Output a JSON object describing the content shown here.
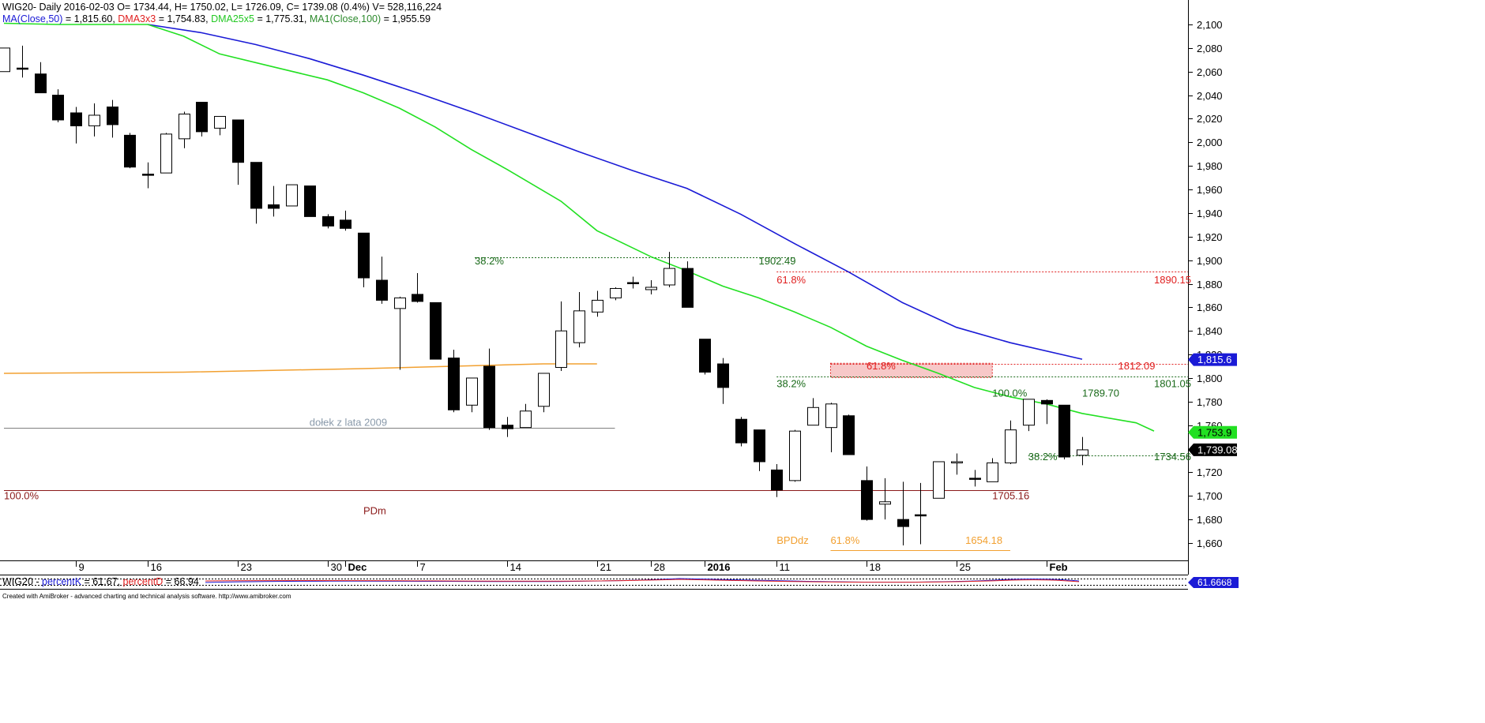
{
  "header": {
    "line1": "WIG20- Daily 2016-02-03 O= 1734.44, H= 1750.02, L= 1726.09, C= 1739.08 (0.4%) V= 528,116,224",
    "ma50_text": "MA(Close,50)",
    "ma50_val": " = 1,815.60, ",
    "dma3_text": "DMA3x3",
    "dma3_val": " = 1,754.83, ",
    "dma25_text": "DMA25x5",
    "dma25_val": " = 1,775.31, ",
    "ma100_text": "MA1(Close,100)",
    "ma100_val": " = 1,955.59"
  },
  "indicator": {
    "prefix": "WIG20 - ",
    "k_label": "percentK",
    "k_val": " = 61.67, ",
    "d_label": "percentD",
    "d_val": " = 66.94",
    "last_label": "61.6668"
  },
  "footer": "Created with AmiBroker - advanced charting and technical analysis software. http://www.amibroker.com",
  "colors": {
    "ma50": "#1a1ad6",
    "dma25": "#22e022",
    "dma3": "#e02020",
    "ma100": "#2c8a2c",
    "orange": "#f2a030",
    "fib_red": "#e02020",
    "fib_green": "#1a6a1a",
    "pdm": "#8b1a1a",
    "pink_zone": "#f7c8c8",
    "support": "#808080"
  },
  "chart_data": {
    "type": "candlestick",
    "title": "WIG20- Daily",
    "ylim": [
      1645,
      2110
    ],
    "y_ticks": [
      1660,
      1680,
      1700,
      1720,
      1740,
      1760,
      1780,
      1800,
      1820,
      1840,
      1860,
      1880,
      1900,
      1920,
      1940,
      1960,
      1980,
      2000,
      2020,
      2040,
      2060,
      2080,
      2100
    ],
    "y_tick_labels": [
      "1,660",
      "1,680",
      "1,700",
      "1,720",
      "1,740",
      "1,760",
      "1,780",
      "1,800",
      "1,820",
      "1,840",
      "1,860",
      "1,880",
      "1,900",
      "1,920",
      "1,940",
      "1,960",
      "1,980",
      "2,000",
      "2,020",
      "2,040",
      "2,060",
      "2,080",
      "2,100"
    ],
    "x_tick_labels": [
      {
        "label": "9",
        "index": 4
      },
      {
        "label": "16",
        "index": 8
      },
      {
        "label": "23",
        "index": 13
      },
      {
        "label": "30",
        "index": 18
      },
      {
        "label": "Dec",
        "index": 19
      },
      {
        "label": "7",
        "index": 23
      },
      {
        "label": "14",
        "index": 28
      },
      {
        "label": "21",
        "index": 33
      },
      {
        "label": "28",
        "index": 36
      },
      {
        "label": "2016",
        "index": 39
      },
      {
        "label": "11",
        "index": 43
      },
      {
        "label": "18",
        "index": 48
      },
      {
        "label": "25",
        "index": 53
      },
      {
        "label": "Feb",
        "index": 58
      }
    ],
    "candles": [
      {
        "o": 2060,
        "h": 2080,
        "l": 2060,
        "c": 2080
      },
      {
        "o": 2063,
        "h": 2082,
        "l": 2055,
        "c": 2063
      },
      {
        "o": 2058,
        "h": 2068,
        "l": 2042,
        "c": 2042
      },
      {
        "o": 2040,
        "h": 2045,
        "l": 2017,
        "c": 2019
      },
      {
        "o": 2025,
        "h": 2030,
        "l": 1999,
        "c": 2014
      },
      {
        "o": 2014,
        "h": 2033,
        "l": 2005,
        "c": 2023
      },
      {
        "o": 2030,
        "h": 2036,
        "l": 2004,
        "c": 2015
      },
      {
        "o": 2006,
        "h": 2008,
        "l": 1978,
        "c": 1979
      },
      {
        "o": 1973,
        "h": 1983,
        "l": 1961,
        "c": 1973
      },
      {
        "o": 1974,
        "h": 2008,
        "l": 1974,
        "c": 2007
      },
      {
        "o": 2003,
        "h": 2026,
        "l": 1995,
        "c": 2024
      },
      {
        "o": 2034,
        "h": 2034,
        "l": 2005,
        "c": 2009
      },
      {
        "o": 2012,
        "h": 2022,
        "l": 2006,
        "c": 2022
      },
      {
        "o": 2019,
        "h": 2019,
        "l": 1964,
        "c": 1983
      },
      {
        "o": 1983,
        "h": 1983,
        "l": 1931,
        "c": 1944
      },
      {
        "o": 1947,
        "h": 1963,
        "l": 1937,
        "c": 1944
      },
      {
        "o": 1946,
        "h": 1964,
        "l": 1946,
        "c": 1964
      },
      {
        "o": 1963,
        "h": 1963,
        "l": 1937,
        "c": 1937
      },
      {
        "o": 1937,
        "h": 1939,
        "l": 1927,
        "c": 1929
      },
      {
        "o": 1934,
        "h": 1942,
        "l": 1925,
        "c": 1927
      },
      {
        "o": 1923,
        "h": 1923,
        "l": 1877,
        "c": 1885
      },
      {
        "o": 1883,
        "h": 1903,
        "l": 1863,
        "c": 1866
      },
      {
        "o": 1859,
        "h": 1869,
        "l": 1807,
        "c": 1868
      },
      {
        "o": 1871,
        "h": 1889,
        "l": 1864,
        "c": 1865
      },
      {
        "o": 1864,
        "h": 1864,
        "l": 1816,
        "c": 1816
      },
      {
        "o": 1817,
        "h": 1824,
        "l": 1771,
        "c": 1773
      },
      {
        "o": 1777,
        "h": 1799,
        "l": 1771,
        "c": 1800
      },
      {
        "o": 1810,
        "h": 1825,
        "l": 1756,
        "c": 1758
      },
      {
        "o": 1760,
        "h": 1767,
        "l": 1750,
        "c": 1757
      },
      {
        "o": 1758,
        "h": 1778,
        "l": 1758,
        "c": 1772
      },
      {
        "o": 1776,
        "h": 1803,
        "l": 1771,
        "c": 1804
      },
      {
        "o": 1809,
        "h": 1865,
        "l": 1806,
        "c": 1840
      },
      {
        "o": 1830,
        "h": 1873,
        "l": 1826,
        "c": 1857
      },
      {
        "o": 1856,
        "h": 1874,
        "l": 1852,
        "c": 1866
      },
      {
        "o": 1868,
        "h": 1877,
        "l": 1866,
        "c": 1876
      },
      {
        "o": 1881,
        "h": 1886,
        "l": 1876,
        "c": 1881
      },
      {
        "o": 1875,
        "h": 1883,
        "l": 1871,
        "c": 1877
      },
      {
        "o": 1879,
        "h": 1907,
        "l": 1877,
        "c": 1893
      },
      {
        "o": 1893,
        "h": 1899,
        "l": 1860,
        "c": 1860
      },
      {
        "o": 1833,
        "h": 1833,
        "l": 1803,
        "c": 1805
      },
      {
        "o": 1812,
        "h": 1817,
        "l": 1778,
        "c": 1792
      },
      {
        "o": 1765,
        "h": 1767,
        "l": 1742,
        "c": 1745
      },
      {
        "o": 1756,
        "h": 1756,
        "l": 1721,
        "c": 1729
      },
      {
        "o": 1722,
        "h": 1727,
        "l": 1699,
        "c": 1705
      },
      {
        "o": 1713,
        "h": 1756,
        "l": 1712,
        "c": 1755
      },
      {
        "o": 1760,
        "h": 1783,
        "l": 1760,
        "c": 1775
      },
      {
        "o": 1758,
        "h": 1779,
        "l": 1737,
        "c": 1778
      },
      {
        "o": 1768,
        "h": 1769,
        "l": 1735,
        "c": 1735
      },
      {
        "o": 1713,
        "h": 1725,
        "l": 1679,
        "c": 1680
      },
      {
        "o": 1693,
        "h": 1715,
        "l": 1680,
        "c": 1695
      },
      {
        "o": 1680,
        "h": 1712,
        "l": 1658,
        "c": 1674
      },
      {
        "o": 1684,
        "h": 1711,
        "l": 1659,
        "c": 1683
      },
      {
        "o": 1698,
        "h": 1729,
        "l": 1698,
        "c": 1729
      },
      {
        "o": 1728,
        "h": 1736,
        "l": 1718,
        "c": 1729
      },
      {
        "o": 1715,
        "h": 1722,
        "l": 1708,
        "c": 1715
      },
      {
        "o": 1712,
        "h": 1732,
        "l": 1712,
        "c": 1728
      },
      {
        "o": 1728,
        "h": 1764,
        "l": 1727,
        "c": 1756
      },
      {
        "o": 1760,
        "h": 1782,
        "l": 1755,
        "c": 1782
      },
      {
        "o": 1781,
        "h": 1782,
        "l": 1761,
        "c": 1778
      },
      {
        "o": 1777,
        "h": 1777,
        "l": 1731,
        "c": 1733
      },
      {
        "o": 1734.44,
        "h": 1750.02,
        "l": 1726.09,
        "c": 1739.08
      }
    ],
    "series": [
      {
        "name": "MA(Close,50)",
        "key": "ma50",
        "points": [
          [
            8,
            2100
          ],
          [
            11,
            2093
          ],
          [
            14,
            2083
          ],
          [
            17,
            2071
          ],
          [
            20,
            2057
          ],
          [
            23,
            2042
          ],
          [
            26,
            2026
          ],
          [
            29,
            2009
          ],
          [
            32,
            1992
          ],
          [
            35,
            1976
          ],
          [
            38,
            1961
          ],
          [
            41,
            1939
          ],
          [
            44,
            1914
          ],
          [
            47,
            1890
          ],
          [
            50,
            1864
          ],
          [
            53,
            1843
          ],
          [
            56,
            1830
          ],
          [
            60,
            1816
          ]
        ]
      },
      {
        "name": "DMA25x5",
        "key": "dma25",
        "points": [
          [
            0,
            2101
          ],
          [
            3,
            2100
          ],
          [
            6,
            2100
          ],
          [
            8,
            2100
          ],
          [
            10,
            2090
          ],
          [
            12,
            2075
          ],
          [
            15,
            2064
          ],
          [
            18,
            2053
          ],
          [
            20,
            2042
          ],
          [
            22,
            2029
          ],
          [
            24,
            2013
          ],
          [
            26,
            1994
          ],
          [
            28,
            1977
          ],
          [
            31,
            1950
          ],
          [
            33,
            1925
          ],
          [
            36,
            1903
          ],
          [
            38,
            1891
          ],
          [
            40,
            1878
          ],
          [
            42,
            1868
          ],
          [
            44,
            1856
          ],
          [
            46,
            1843
          ],
          [
            48,
            1827
          ],
          [
            50,
            1815
          ],
          [
            52,
            1804
          ],
          [
            54,
            1792
          ],
          [
            56,
            1784
          ],
          [
            58,
            1778
          ],
          [
            60,
            1770
          ],
          [
            63,
            1762
          ],
          [
            64,
            1755
          ]
        ]
      },
      {
        "name": "orange",
        "key": "orange",
        "points": [
          [
            0,
            1804
          ],
          [
            10,
            1805
          ],
          [
            20,
            1808
          ],
          [
            25,
            1810
          ],
          [
            30,
            1812
          ],
          [
            33,
            1812
          ]
        ]
      }
    ],
    "annotations": [
      {
        "text": "38.2%",
        "key": "fib_green",
        "x": 26.2,
        "y": 1899
      },
      {
        "text": "1902.49",
        "key": "fib_green",
        "x": 42,
        "y": 1899
      },
      {
        "text": "61.8%",
        "key": "fib_red",
        "x": 43,
        "y": 1883
      },
      {
        "text": "1890.15",
        "key": "fib_red",
        "x": 64,
        "y": 1883
      },
      {
        "text": "61.8%",
        "key": "fib_red",
        "x": 48,
        "y": 1810
      },
      {
        "text": "1812.09",
        "key": "fib_red",
        "x": 62,
        "y": 1810
      },
      {
        "text": "38.2%",
        "key": "fib_green",
        "x": 43,
        "y": 1795
      },
      {
        "text": "1801.05",
        "key": "fib_green",
        "x": 64,
        "y": 1795
      },
      {
        "text": "100.0%",
        "key": "fib_green",
        "x": 55,
        "y": 1787
      },
      {
        "text": "1789.70",
        "key": "fib_green",
        "x": 60,
        "y": 1787
      },
      {
        "text": "38.2%",
        "key": "fib_green",
        "x": 57,
        "y": 1733
      },
      {
        "text": "1734.56",
        "key": "fib_green",
        "x": 64,
        "y": 1733
      },
      {
        "text": "1705.16",
        "key": "pdm",
        "x": 55,
        "y": 1700
      },
      {
        "text": "100.0%",
        "key": "pdm",
        "x": 0,
        "y": 1700
      },
      {
        "text": "PDm",
        "key": "pdm",
        "x": 20,
        "y": 1687
      },
      {
        "text": "dołek z lata 2009",
        "key": "support",
        "x": 17,
        "y": 1762
      },
      {
        "text": "BPDdz",
        "key": "orange",
        "x": 43,
        "y": 1662
      },
      {
        "text": "61.8%",
        "key": "orange",
        "x": 46,
        "y": 1662
      },
      {
        "text": "1654.18",
        "key": "orange",
        "x": 53.5,
        "y": 1662
      }
    ],
    "levels": [
      {
        "y": 1902.49,
        "x0": 26.2,
        "x1": 44,
        "key": "fib_green",
        "dash": true
      },
      {
        "y": 1890.15,
        "x0": 43,
        "x1": 67,
        "key": "fib_red",
        "dash": true
      },
      {
        "y": 1812.09,
        "x0": 46,
        "x1": 67,
        "key": "fib_red",
        "dash": true
      },
      {
        "y": 1801.05,
        "x0": 43,
        "x1": 67,
        "key": "fib_green",
        "dash": true
      },
      {
        "y": 1734.56,
        "x0": 57,
        "x1": 67,
        "key": "fib_green",
        "dash": true
      },
      {
        "y": 1705.16,
        "x0": 0,
        "x1": 57,
        "key": "pdm",
        "dash": false
      },
      {
        "y": 1758,
        "x0": 0,
        "x1": 34,
        "key": "support",
        "dash": false
      },
      {
        "y": 1654.18,
        "x0": 46,
        "x1": 56,
        "key": "orange",
        "dash": false
      }
    ],
    "zones": [
      {
        "y0": 1800.5,
        "y1": 1812.5,
        "x0": 46,
        "x1": 55,
        "key": "pink_zone"
      }
    ],
    "price_labels": [
      {
        "text": "1,815.6",
        "y": 1815.6,
        "bg": "#1a1ad6",
        "fg": "#ffffff"
      },
      {
        "text": "1,753.9",
        "y": 1753.9,
        "bg": "#22e022",
        "fg": "#000000"
      },
      {
        "text": "1,739.08",
        "y": 1739.08,
        "bg": "#000000",
        "fg": "#ffffff"
      }
    ]
  }
}
